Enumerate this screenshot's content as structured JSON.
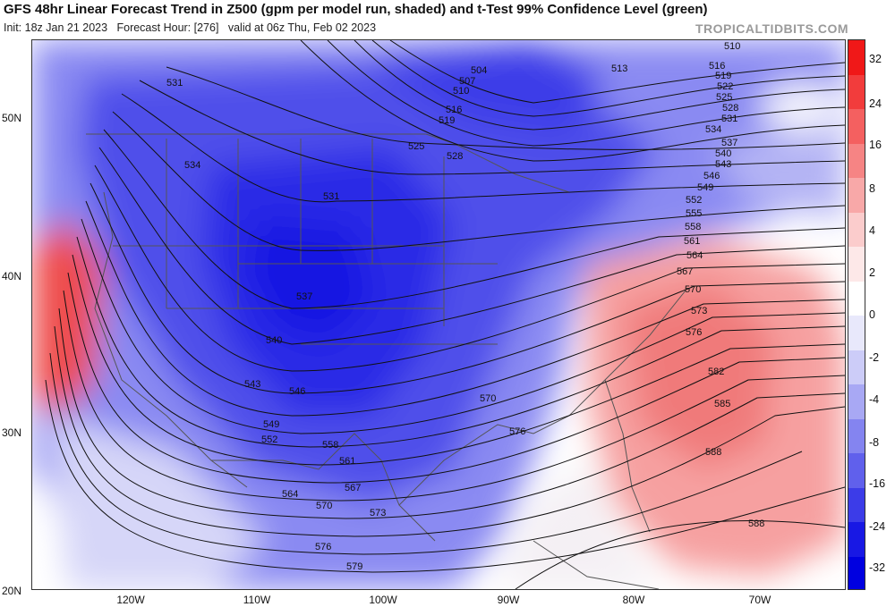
{
  "title": "GFS 48hr Linear Forecast Trend in Z500 (gpm per model run, shaded) and t-Test 99% Confidence Level (green)",
  "subtitle": {
    "init": "Init: 18z Jan 21 2023",
    "forecast_hour": "Forecast Hour: [276]",
    "valid": "valid at 06z Thu, Feb 02 2023"
  },
  "watermark": "TROPICALTIDBITS.COM",
  "colorbar": {
    "labels": [
      "32",
      "24",
      "16",
      "8",
      "4",
      "2",
      "0",
      "-2",
      "-4",
      "-8",
      "-16",
      "-24",
      "-32"
    ],
    "colors": [
      "#f01818",
      "#f23c3c",
      "#f46060",
      "#f68484",
      "#f8a8a8",
      "#fbcccc",
      "#fde8e8",
      "#ffffff",
      "#e8e8fb",
      "#ccccf8",
      "#a8a8f4",
      "#8484f0",
      "#6060ec",
      "#3c3ce8",
      "#1818e4",
      "#0000e0"
    ]
  },
  "lat_labels": [
    "50N",
    "40N",
    "30N",
    "20N"
  ],
  "lon_labels": [
    "120W",
    "110W",
    "100W",
    "90W",
    "80W",
    "70W"
  ],
  "contour_labels": {
    "l510a": "510",
    "l513": "513",
    "l516a": "516",
    "l519a": "519",
    "l522": "522",
    "l525a": "525",
    "l528a": "528",
    "l531a": "531",
    "l534a": "534",
    "l537a": "537",
    "l540a": "540",
    "l543a": "543",
    "l546a": "546",
    "l549a": "549",
    "l552a": "552",
    "l555": "555",
    "l558a": "558",
    "l561a": "561",
    "l564a": "564",
    "l567a": "567",
    "l570a": "570",
    "l573a": "573",
    "l576a": "576",
    "l582": "582",
    "l585": "585",
    "l588a": "588",
    "l588b": "588",
    "l504": "504",
    "l507": "507",
    "l510b": "510",
    "l516b": "516",
    "l519b": "519",
    "l525b": "525",
    "l528b": "528",
    "l531b": "531",
    "l531c": "531",
    "l534b": "534",
    "l537b": "537",
    "l540b": "540",
    "l543b": "543",
    "l546b": "546",
    "l549b": "549",
    "l552b": "552",
    "l558b": "558",
    "l561b": "561",
    "l564b": "564",
    "l567b": "567",
    "l570b": "570",
    "l570c": "570",
    "l573b": "573",
    "l576b": "576",
    "l576c": "576",
    "l579": "579"
  },
  "colors": {
    "blue_strong": "#2020e8",
    "blue_light": "#c8c8f6",
    "red_strong": "#ee4848",
    "red_light": "#fcd4d4",
    "contour": "#111111",
    "borders": "#555555"
  }
}
